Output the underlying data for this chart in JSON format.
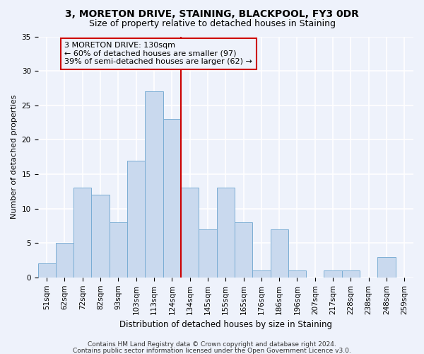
{
  "title": "3, MORETON DRIVE, STAINING, BLACKPOOL, FY3 0DR",
  "subtitle": "Size of property relative to detached houses in Staining",
  "xlabel": "Distribution of detached houses by size in Staining",
  "ylabel": "Number of detached properties",
  "bar_labels": [
    "51sqm",
    "62sqm",
    "72sqm",
    "82sqm",
    "93sqm",
    "103sqm",
    "113sqm",
    "124sqm",
    "134sqm",
    "145sqm",
    "155sqm",
    "165sqm",
    "176sqm",
    "186sqm",
    "196sqm",
    "207sqm",
    "217sqm",
    "228sqm",
    "238sqm",
    "248sqm",
    "259sqm"
  ],
  "bar_values": [
    2,
    5,
    13,
    12,
    8,
    17,
    27,
    23,
    13,
    7,
    13,
    8,
    1,
    7,
    1,
    0,
    1,
    1,
    0,
    3,
    0
  ],
  "bar_color": "#c9d9ee",
  "bar_edge_color": "#7aadd4",
  "background_color": "#eef2fb",
  "grid_color": "#ffffff",
  "vline_color": "#cc0000",
  "vline_position": 8.0,
  "annotation_text_line1": "3 MORETON DRIVE: 130sqm",
  "annotation_text_line2": "← 60% of detached houses are smaller (97)",
  "annotation_text_line3": "39% of semi-detached houses are larger (62) →",
  "annotation_box_edge_color": "#cc0000",
  "ylim": [
    0,
    35
  ],
  "yticks": [
    0,
    5,
    10,
    15,
    20,
    25,
    30,
    35
  ],
  "footer_line1": "Contains HM Land Registry data © Crown copyright and database right 2024.",
  "footer_line2": "Contains public sector information licensed under the Open Government Licence v3.0.",
  "title_fontsize": 10,
  "subtitle_fontsize": 9,
  "xlabel_fontsize": 8.5,
  "ylabel_fontsize": 8,
  "tick_fontsize": 7.5,
  "footer_fontsize": 6.5
}
